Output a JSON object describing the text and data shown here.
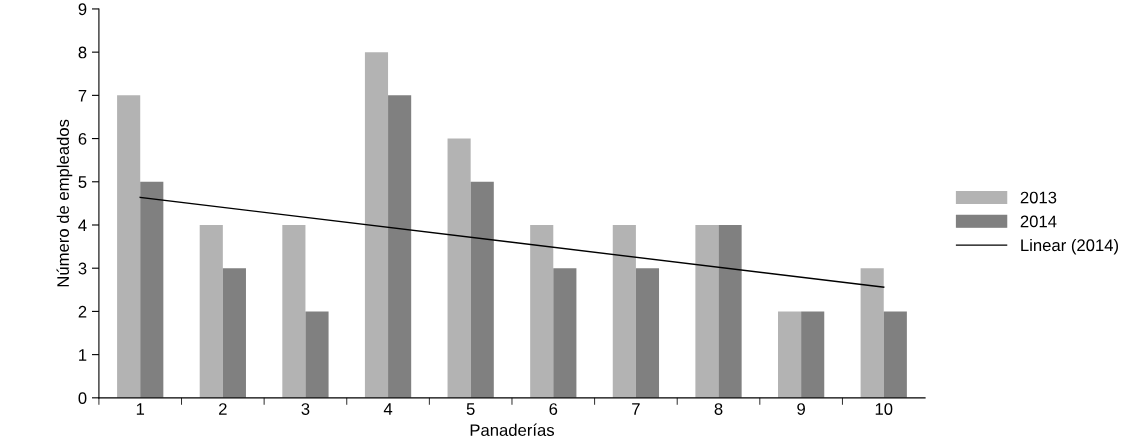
{
  "chart_data": {
    "type": "bar",
    "xlabel": "Panaderías",
    "ylabel": "Número de empleados",
    "categories": [
      "1",
      "2",
      "3",
      "4",
      "5",
      "6",
      "7",
      "8",
      "9",
      "10"
    ],
    "series": [
      {
        "name": "2013",
        "color": "#b3b3b3",
        "values": [
          7,
          4,
          4,
          8,
          6,
          4,
          4,
          4,
          2,
          3
        ]
      },
      {
        "name": "2014",
        "color": "#808080",
        "values": [
          5,
          3,
          2,
          7,
          5,
          3,
          3,
          4,
          2,
          2
        ]
      },
      {
        "name": "Linear (2014)",
        "type": "line",
        "color": "#000000",
        "x": [
          "1",
          "10"
        ],
        "values": [
          4.64,
          2.56
        ]
      }
    ],
    "ylim": [
      0,
      9
    ],
    "yticks": [
      0,
      1,
      2,
      3,
      4,
      5,
      6,
      7,
      8,
      9
    ],
    "grid": false,
    "legend": "right"
  }
}
